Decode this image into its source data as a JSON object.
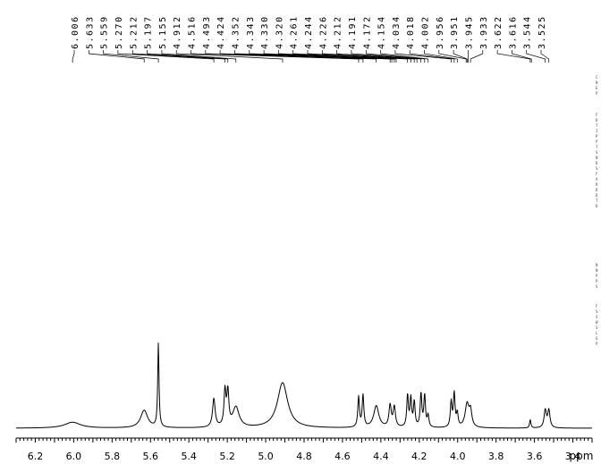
{
  "chart_data": {
    "type": "line",
    "title": "",
    "xlabel": "ppm",
    "ylabel": "",
    "x_reversed": true,
    "xlim": [
      6.3,
      3.3
    ],
    "xticks": [
      6.2,
      6.0,
      5.8,
      5.6,
      5.4,
      5.2,
      5.0,
      4.8,
      4.6,
      4.4,
      4.2,
      4.0,
      3.8,
      3.6,
      3.4
    ],
    "xtick_labels": [
      "6.2",
      "6.0",
      "5.8",
      "5.6",
      "5.4",
      "5.2",
      "5.0",
      "4.8",
      "4.6",
      "4.4",
      "4.2",
      "4.0",
      "3.8",
      "3.6",
      "3.4"
    ],
    "grid": false,
    "peak_labels": [
      "6.006",
      "5.633",
      "5.559",
      "5.270",
      "5.212",
      "5.197",
      "5.155",
      "4.912",
      "4.516",
      "4.493",
      "4.424",
      "4.352",
      "4.343",
      "4.330",
      "4.320",
      "4.261",
      "4.244",
      "4.226",
      "4.212",
      "4.191",
      "4.172",
      "4.154",
      "4.034",
      "4.018",
      "4.002",
      "3.956",
      "3.951",
      "3.945",
      "3.933",
      "3.622",
      "3.616",
      "3.544",
      "3.525"
    ],
    "series": [
      {
        "baseline": 0.0,
        "peaks": [
          {
            "ppm": 6.006,
            "height": 0.07,
            "width": 0.05
          },
          {
            "ppm": 5.633,
            "height": 0.21,
            "width": 0.022
          },
          {
            "ppm": 5.559,
            "height": 1.0,
            "width": 0.004
          },
          {
            "ppm": 5.27,
            "height": 0.34,
            "width": 0.008
          },
          {
            "ppm": 5.212,
            "height": 0.42,
            "width": 0.006
          },
          {
            "ppm": 5.197,
            "height": 0.4,
            "width": 0.006
          },
          {
            "ppm": 5.155,
            "height": 0.24,
            "width": 0.02
          },
          {
            "ppm": 4.912,
            "height": 0.54,
            "width": 0.032
          },
          {
            "ppm": 4.516,
            "height": 0.36,
            "width": 0.005
          },
          {
            "ppm": 4.493,
            "height": 0.38,
            "width": 0.005
          },
          {
            "ppm": 4.424,
            "height": 0.26,
            "width": 0.016
          },
          {
            "ppm": 4.352,
            "height": 0.26,
            "width": 0.007
          },
          {
            "ppm": 4.33,
            "height": 0.24,
            "width": 0.007
          },
          {
            "ppm": 4.261,
            "height": 0.38,
            "width": 0.005
          },
          {
            "ppm": 4.244,
            "height": 0.34,
            "width": 0.005
          },
          {
            "ppm": 4.226,
            "height": 0.3,
            "width": 0.005
          },
          {
            "ppm": 4.191,
            "height": 0.4,
            "width": 0.005
          },
          {
            "ppm": 4.172,
            "height": 0.38,
            "width": 0.005
          },
          {
            "ppm": 4.154,
            "height": 0.14,
            "width": 0.005
          },
          {
            "ppm": 4.034,
            "height": 0.3,
            "width": 0.005
          },
          {
            "ppm": 4.018,
            "height": 0.4,
            "width": 0.005
          },
          {
            "ppm": 4.002,
            "height": 0.16,
            "width": 0.005
          },
          {
            "ppm": 3.951,
            "height": 0.28,
            "width": 0.012
          },
          {
            "ppm": 3.933,
            "height": 0.18,
            "width": 0.008
          },
          {
            "ppm": 3.622,
            "height": 0.1,
            "width": 0.004
          },
          {
            "ppm": 3.544,
            "height": 0.21,
            "width": 0.007
          },
          {
            "ppm": 3.525,
            "height": 0.21,
            "width": 0.007
          }
        ]
      }
    ]
  }
}
